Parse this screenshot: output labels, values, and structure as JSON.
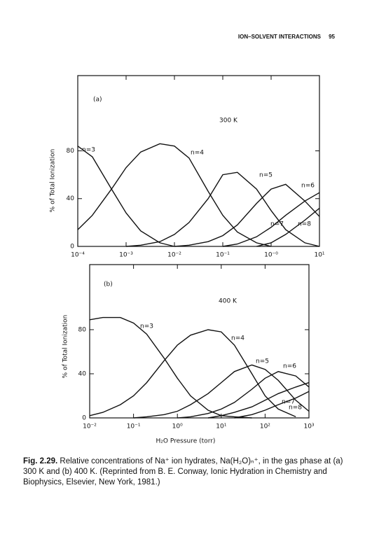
{
  "header": {
    "title": "ION–SOLVENT INTERACTIONS",
    "page": "95"
  },
  "chart_data": [
    {
      "type": "line",
      "panel": "(a)",
      "annotation": "300 K",
      "y_label": "% of Total Ionization",
      "xscale": "log",
      "xlim": [
        0.0001,
        10
      ],
      "ylim": [
        0,
        143
      ],
      "grid": false,
      "color": "#111111",
      "xticks": [
        {
          "value": 0.0001,
          "label": "10⁻⁴"
        },
        {
          "value": 0.001,
          "label": "10⁻³"
        },
        {
          "value": 0.01,
          "label": "10⁻²"
        },
        {
          "value": 0.1,
          "label": "10⁻¹"
        },
        {
          "value": 1,
          "label": "10⁻⁰"
        },
        {
          "value": 10,
          "label": "10¹"
        }
      ],
      "yticks": [
        0,
        40,
        80
      ],
      "series": [
        {
          "name": "n=3",
          "x": [
            0.0001,
            0.0002,
            0.0005,
            0.001,
            0.002,
            0.005,
            0.01
          ],
          "values": [
            84,
            75,
            48,
            28,
            13,
            3,
            0
          ]
        },
        {
          "name": "n=4",
          "x": [
            0.0001,
            0.0002,
            0.0005,
            0.001,
            0.002,
            0.005,
            0.01,
            0.02,
            0.05,
            0.1,
            0.2,
            0.5,
            1
          ],
          "values": [
            14,
            26,
            48,
            66,
            79,
            86,
            84,
            74,
            46,
            26,
            12,
            3,
            0
          ]
        },
        {
          "name": "n=5",
          "x": [
            0.001,
            0.002,
            0.005,
            0.01,
            0.02,
            0.05,
            0.1,
            0.2,
            0.5,
            1,
            2,
            5,
            10
          ],
          "values": [
            0,
            1,
            4,
            10,
            20,
            40,
            60,
            62,
            48,
            30,
            14,
            3,
            0
          ]
        },
        {
          "name": "n=6",
          "x": [
            0.01,
            0.02,
            0.05,
            0.1,
            0.2,
            0.5,
            1,
            2,
            5,
            10
          ],
          "values": [
            0,
            1,
            4,
            9,
            18,
            36,
            48,
            52,
            38,
            25
          ]
        },
        {
          "name": "n=7",
          "x": [
            0.1,
            0.2,
            0.5,
            1,
            2,
            5,
            10
          ],
          "values": [
            0,
            2,
            8,
            16,
            26,
            38,
            45
          ]
        },
        {
          "name": "n=8",
          "x": [
            0.5,
            1,
            2,
            5,
            10
          ],
          "values": [
            0,
            3,
            10,
            22,
            32
          ]
        }
      ]
    },
    {
      "type": "line",
      "panel": "(b)",
      "annotation": "400 K",
      "y_label": "% of Total Ionization",
      "x_label": "H₂O Pressure (torr)",
      "xscale": "log",
      "xlim": [
        0.01,
        1000
      ],
      "ylim": [
        0,
        139
      ],
      "grid": false,
      "color": "#111111",
      "xticks": [
        {
          "value": 0.01,
          "label": "10⁻²"
        },
        {
          "value": 0.1,
          "label": "10⁻¹"
        },
        {
          "value": 1,
          "label": "10⁰"
        },
        {
          "value": 10,
          "label": "10¹"
        },
        {
          "value": 100,
          "label": "10²"
        },
        {
          "value": 1000,
          "label": "10³"
        }
      ],
      "yticks": [
        0,
        40,
        80
      ],
      "series": [
        {
          "name": "n=3",
          "x": [
            0.01,
            0.02,
            0.05,
            0.1,
            0.2,
            0.5,
            1,
            2,
            5,
            10,
            20,
            50
          ],
          "values": [
            89,
            91,
            91,
            86,
            76,
            54,
            36,
            20,
            7,
            2,
            1,
            0
          ]
        },
        {
          "name": "n=4",
          "x": [
            0.01,
            0.02,
            0.05,
            0.1,
            0.2,
            0.5,
            1,
            2,
            5,
            10,
            20,
            50,
            100,
            200,
            500
          ],
          "values": [
            2,
            5,
            12,
            20,
            32,
            52,
            66,
            75,
            80,
            78,
            66,
            40,
            20,
            8,
            1
          ]
        },
        {
          "name": "n=5",
          "x": [
            0.1,
            0.2,
            0.5,
            1,
            2,
            5,
            10,
            20,
            50,
            100,
            200,
            500,
            1000
          ],
          "values": [
            0,
            1,
            3,
            6,
            12,
            22,
            32,
            42,
            48,
            44,
            34,
            16,
            6
          ]
        },
        {
          "name": "n=6",
          "x": [
            1,
            2,
            5,
            10,
            20,
            50,
            100,
            200,
            500,
            1000
          ],
          "values": [
            0,
            1,
            4,
            8,
            14,
            26,
            36,
            42,
            38,
            28
          ]
        },
        {
          "name": "n=7",
          "x": [
            5,
            10,
            20,
            50,
            100,
            200,
            500,
            1000
          ],
          "values": [
            0,
            2,
            5,
            10,
            16,
            22,
            28,
            32
          ]
        },
        {
          "name": "n=8",
          "x": [
            20,
            50,
            100,
            200,
            500,
            1000
          ],
          "values": [
            0,
            3,
            7,
            12,
            18,
            24
          ]
        }
      ]
    }
  ],
  "caption": {
    "label": "Fig. 2.29.",
    "text": "Relative concentrations of Na⁺ ion hydrates, Na(H₂O)ₙ⁺, in the gas phase at (a) 300 K and (b) 400 K. (Reprinted from B. E. Conway, Ionic Hydration in Chemistry and Biophysics, Elsevier, New York, 1981.)"
  }
}
